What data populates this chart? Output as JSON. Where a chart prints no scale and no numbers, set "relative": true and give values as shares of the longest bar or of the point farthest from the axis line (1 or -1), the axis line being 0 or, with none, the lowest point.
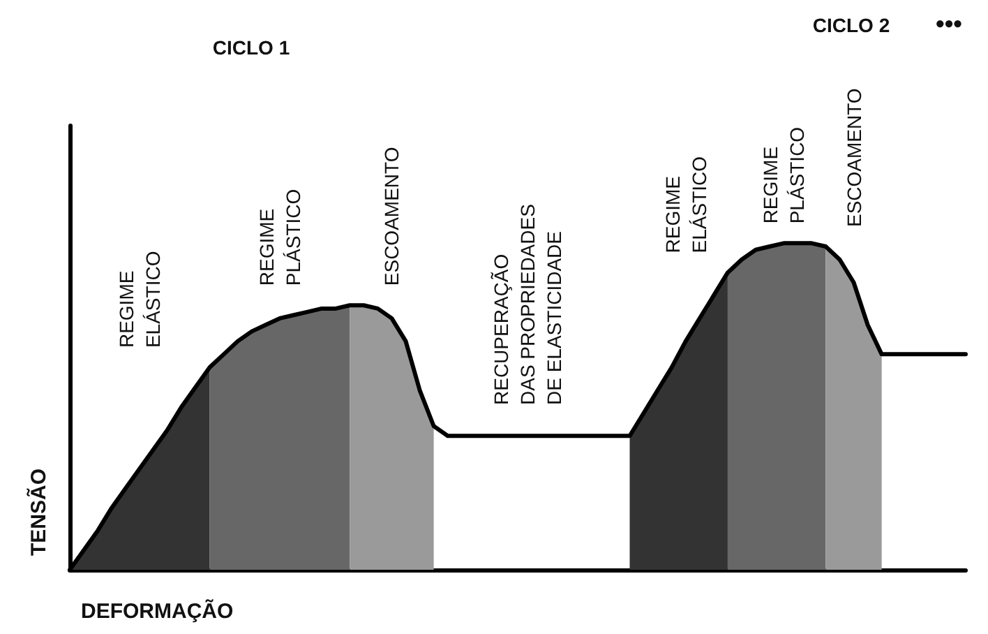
{
  "chart_data": {
    "type": "area",
    "relative": true,
    "xlabel": "DEFORMAÇÃO",
    "ylabel": "TENSÃO",
    "legend": false,
    "grid": false,
    "marker": "none",
    "annotations": [
      "CICLO 1",
      "CICLO 2",
      "•••",
      "RECUPERAÇÃO\nDAS PROPRIEDADES\nDE ELASTICIDADE"
    ],
    "categories": [
      null,
      null,
      null,
      null,
      null,
      null,
      null,
      null,
      null,
      null,
      null,
      null,
      null,
      null,
      null,
      null,
      null,
      null,
      null,
      null,
      null,
      null,
      null,
      null,
      null,
      null,
      null,
      null,
      null,
      null,
      null,
      null,
      null,
      null,
      null,
      null,
      null,
      null,
      null,
      null,
      null,
      null,
      null,
      null,
      null,
      null,
      null,
      null,
      null,
      null,
      null,
      null,
      null,
      null,
      null,
      null,
      null,
      null,
      null,
      null,
      null,
      null,
      null,
      null,
      null
    ],
    "series": [
      {
        "name": "REGIME\nELÁSTICO",
        "color": "#333333",
        "values": [
          0,
          0.06,
          0.12,
          0.19,
          0.25,
          0.31,
          0.37,
          0.43,
          0.5,
          0.56,
          0.62,
          null,
          null,
          null,
          null,
          null,
          null,
          null,
          null,
          null,
          null,
          null,
          null,
          null,
          null,
          null,
          null,
          null,
          null,
          null,
          null,
          null,
          null,
          null,
          null,
          null,
          null,
          null,
          null,
          null,
          null,
          null,
          null,
          null,
          null,
          null,
          null,
          null,
          null,
          null,
          null,
          null,
          null,
          null,
          null,
          null,
          null,
          null,
          null,
          null,
          null,
          null,
          null,
          null,
          null
        ]
      },
      {
        "name": "REGIME\nPLÁSTICO",
        "color": "#676767",
        "values": [
          null,
          null,
          null,
          null,
          null,
          null,
          null,
          null,
          null,
          null,
          0.62,
          0.66,
          0.7,
          0.73,
          0.75,
          0.77,
          0.78,
          0.79,
          0.8,
          0.8,
          0.81,
          null,
          null,
          null,
          null,
          null,
          null,
          null,
          null,
          null,
          null,
          null,
          null,
          null,
          null,
          null,
          null,
          null,
          null,
          null,
          null,
          null,
          null,
          null,
          null,
          null,
          null,
          null,
          null,
          null,
          null,
          null,
          null,
          null,
          null,
          null,
          null,
          null,
          null,
          null,
          null,
          null,
          null,
          null,
          null
        ]
      },
      {
        "name": "ESCOAMENTO",
        "color": "#9a9a9a",
        "values": [
          null,
          null,
          null,
          null,
          null,
          null,
          null,
          null,
          null,
          null,
          null,
          null,
          null,
          null,
          null,
          null,
          null,
          null,
          null,
          null,
          0.81,
          0.81,
          0.8,
          0.77,
          0.7,
          0.55,
          0.44,
          null,
          null,
          null,
          null,
          null,
          null,
          null,
          null,
          null,
          null,
          null,
          null,
          null,
          null,
          null,
          null,
          null,
          null,
          null,
          null,
          null,
          null,
          null,
          null,
          null,
          null,
          null,
          null,
          null,
          null,
          null,
          null,
          null,
          null,
          null,
          null,
          null,
          null
        ]
      },
      {
        "name": "REGIME\nELÁSTICO",
        "color": "#333333",
        "values": [
          null,
          null,
          null,
          null,
          null,
          null,
          null,
          null,
          null,
          null,
          null,
          null,
          null,
          null,
          null,
          null,
          null,
          null,
          null,
          null,
          null,
          null,
          null,
          null,
          null,
          null,
          null,
          null,
          null,
          null,
          null,
          null,
          null,
          null,
          null,
          null,
          null,
          null,
          null,
          null,
          0.41,
          0.48,
          0.55,
          0.62,
          0.7,
          0.77,
          0.84,
          0.91,
          null,
          null,
          null,
          null,
          null,
          null,
          null,
          null,
          null,
          null,
          null,
          null,
          null,
          null,
          null,
          null,
          null
        ]
      },
      {
        "name": "REGIME\nPLÁSTICO",
        "color": "#676767",
        "values": [
          null,
          null,
          null,
          null,
          null,
          null,
          null,
          null,
          null,
          null,
          null,
          null,
          null,
          null,
          null,
          null,
          null,
          null,
          null,
          null,
          null,
          null,
          null,
          null,
          null,
          null,
          null,
          null,
          null,
          null,
          null,
          null,
          null,
          null,
          null,
          null,
          null,
          null,
          null,
          null,
          null,
          null,
          null,
          null,
          null,
          null,
          null,
          0.91,
          0.95,
          0.98,
          0.99,
          1,
          1,
          1,
          0.99,
          null,
          null,
          null,
          null,
          null,
          null,
          null,
          null,
          null,
          null
        ]
      },
      {
        "name": "ESCOAMENTO",
        "color": "#9a9a9a",
        "values": [
          null,
          null,
          null,
          null,
          null,
          null,
          null,
          null,
          null,
          null,
          null,
          null,
          null,
          null,
          null,
          null,
          null,
          null,
          null,
          null,
          null,
          null,
          null,
          null,
          null,
          null,
          null,
          null,
          null,
          null,
          null,
          null,
          null,
          null,
          null,
          null,
          null,
          null,
          null,
          null,
          null,
          null,
          null,
          null,
          null,
          null,
          null,
          null,
          null,
          null,
          null,
          null,
          null,
          null,
          0.99,
          0.95,
          0.88,
          0.75,
          0.66,
          null,
          null,
          null,
          null,
          null,
          null
        ]
      },
      {
        "type": "line",
        "color": "#000000",
        "values": [
          0,
          0.06,
          0.12,
          0.19,
          0.25,
          0.31,
          0.37,
          0.43,
          0.5,
          0.56,
          0.62,
          0.66,
          0.7,
          0.73,
          0.75,
          0.77,
          0.78,
          0.79,
          0.8,
          0.8,
          0.81,
          0.81,
          0.8,
          0.77,
          0.7,
          0.55,
          0.44,
          0.41,
          0.41,
          0.41,
          0.41,
          0.41,
          0.41,
          0.41,
          0.41,
          0.41,
          0.41,
          0.41,
          0.41,
          0.41,
          0.41,
          0.48,
          0.55,
          0.62,
          0.7,
          0.77,
          0.84,
          0.91,
          0.95,
          0.98,
          0.99,
          1,
          1,
          1,
          0.99,
          0.95,
          0.88,
          0.75,
          0.66,
          0.66,
          0.66,
          0.66,
          0.66,
          0.66,
          0.66
        ]
      }
    ]
  }
}
